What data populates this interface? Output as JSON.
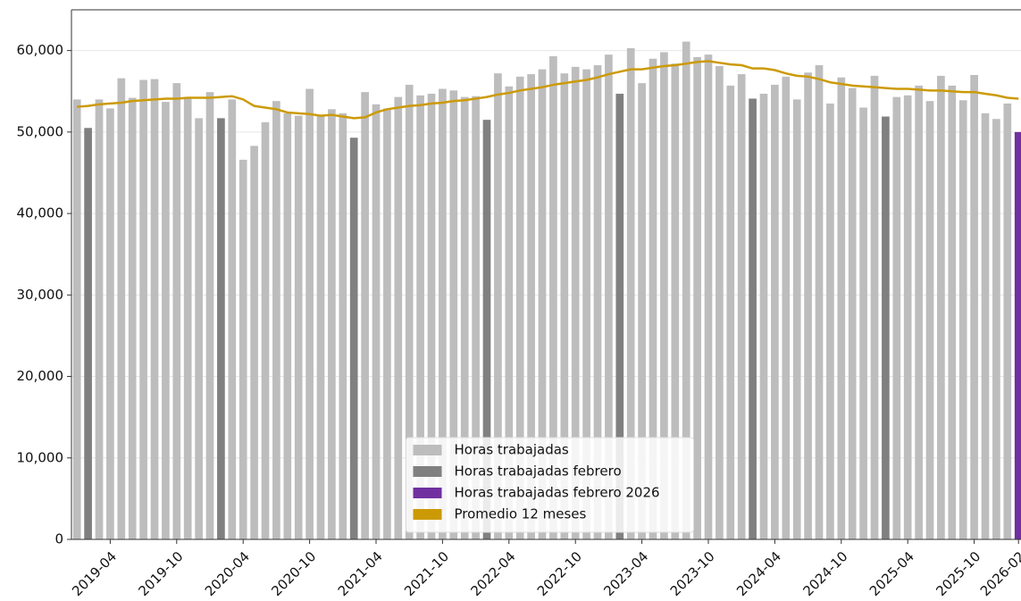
{
  "chart_data": {
    "type": "bar",
    "categories": [
      null,
      null,
      null,
      "2019-04",
      null,
      null,
      null,
      null,
      null,
      "2019-10",
      null,
      null,
      null,
      null,
      null,
      "2020-04",
      null,
      null,
      null,
      null,
      null,
      "2020-10",
      null,
      null,
      null,
      null,
      null,
      "2021-04",
      null,
      null,
      null,
      null,
      null,
      "2021-10",
      null,
      null,
      null,
      null,
      null,
      "2022-04",
      null,
      null,
      null,
      null,
      null,
      "2022-10",
      null,
      null,
      null,
      null,
      null,
      "2023-04",
      null,
      null,
      null,
      null,
      null,
      "2023-10",
      null,
      null,
      null,
      null,
      null,
      "2024-04",
      null,
      null,
      null,
      null,
      null,
      "2024-10",
      null,
      null,
      null,
      null,
      null,
      "2025-04",
      null,
      null,
      null,
      null,
      null,
      "2025-10",
      null,
      null,
      null,
      "2026-02"
    ],
    "series": [
      {
        "name": "Horas trabajadas",
        "color": "#bdbdbd",
        "values": [
          54000,
          null,
          54000,
          52900,
          56600,
          54200,
          56400,
          56500,
          53700,
          56000,
          54100,
          51700,
          54900,
          null,
          54000,
          46600,
          48300,
          51200,
          53800,
          52300,
          52000,
          55300,
          52000,
          52800,
          52300,
          null,
          54900,
          53400,
          52900,
          54300,
          55800,
          54500,
          54700,
          55300,
          55100,
          54300,
          54400,
          null,
          57200,
          55600,
          56800,
          57100,
          57700,
          59300,
          57200,
          58000,
          57700,
          58200,
          59500,
          null,
          60300,
          56000,
          59000,
          59800,
          58400,
          61100,
          59200,
          59500,
          58100,
          55700,
          57100,
          null,
          54700,
          55800,
          56800,
          54000,
          57300,
          58200,
          53500,
          56700,
          55400,
          53000,
          56900,
          null,
          54300,
          54500,
          55700,
          53800,
          56900,
          55700,
          53900,
          57000,
          52300,
          51600,
          53500,
          null
        ]
      },
      {
        "name": "Horas trabajadas febrero",
        "color": "#808080",
        "values": [
          null,
          50500,
          null,
          null,
          null,
          null,
          null,
          null,
          null,
          null,
          null,
          null,
          null,
          51700,
          null,
          null,
          null,
          null,
          null,
          null,
          null,
          null,
          null,
          null,
          null,
          49300,
          null,
          null,
          null,
          null,
          null,
          null,
          null,
          null,
          null,
          null,
          null,
          51500,
          null,
          null,
          null,
          null,
          null,
          null,
          null,
          null,
          null,
          null,
          null,
          54700,
          null,
          null,
          null,
          null,
          null,
          null,
          null,
          null,
          null,
          null,
          null,
          54100,
          null,
          null,
          null,
          null,
          null,
          null,
          null,
          null,
          null,
          null,
          null,
          51900,
          null,
          null,
          null,
          null,
          null,
          null,
          null,
          null,
          null,
          null,
          null,
          null
        ]
      },
      {
        "name": "Horas trabajadas febrero 2026",
        "color": "#7030a0",
        "values": [
          null,
          null,
          null,
          null,
          null,
          null,
          null,
          null,
          null,
          null,
          null,
          null,
          null,
          null,
          null,
          null,
          null,
          null,
          null,
          null,
          null,
          null,
          null,
          null,
          null,
          null,
          null,
          null,
          null,
          null,
          null,
          null,
          null,
          null,
          null,
          null,
          null,
          null,
          null,
          null,
          null,
          null,
          null,
          null,
          null,
          null,
          null,
          null,
          null,
          null,
          null,
          null,
          null,
          null,
          null,
          null,
          null,
          null,
          null,
          null,
          null,
          null,
          null,
          null,
          null,
          null,
          null,
          null,
          null,
          null,
          null,
          null,
          null,
          null,
          null,
          null,
          null,
          null,
          null,
          null,
          null,
          null,
          null,
          null,
          null,
          50000
        ]
      },
      {
        "name": "Promedio 12 meses",
        "color": "#cc9a06",
        "type": "line",
        "values": [
          53100,
          53200,
          53400,
          53500,
          53600,
          53800,
          53900,
          54000,
          54100,
          54100,
          54200,
          54200,
          54200,
          54300,
          54400,
          54000,
          53200,
          53000,
          52800,
          52400,
          52300,
          52200,
          52000,
          52100,
          51900,
          51700,
          51800,
          52400,
          52800,
          53000,
          53200,
          53300,
          53500,
          53600,
          53800,
          53900,
          54100,
          54300,
          54600,
          54800,
          55100,
          55300,
          55500,
          55800,
          56000,
          56200,
          56400,
          56700,
          57100,
          57400,
          57700,
          57700,
          57900,
          58100,
          58200,
          58400,
          58600,
          58700,
          58500,
          58300,
          58200,
          57800,
          57800,
          57600,
          57200,
          56900,
          56800,
          56500,
          56100,
          55900,
          55700,
          55600,
          55500,
          55400,
          55300,
          55300,
          55200,
          55100,
          55100,
          55000,
          54900,
          54900,
          54700,
          54500,
          54200,
          54100
        ]
      }
    ],
    "ylim": [
      0,
      65000
    ],
    "yticks": [
      0,
      {
        "value": 10000,
        "label": "10,000"
      },
      {
        "value": 20000,
        "label": "20,000"
      },
      {
        "value": 30000,
        "label": "30,000"
      },
      {
        "value": 40000,
        "label": "40,000"
      },
      {
        "value": 50000,
        "label": "50,000"
      },
      {
        "value": 60000,
        "label": "60,000"
      }
    ],
    "grid": true,
    "legend": "lower center"
  }
}
